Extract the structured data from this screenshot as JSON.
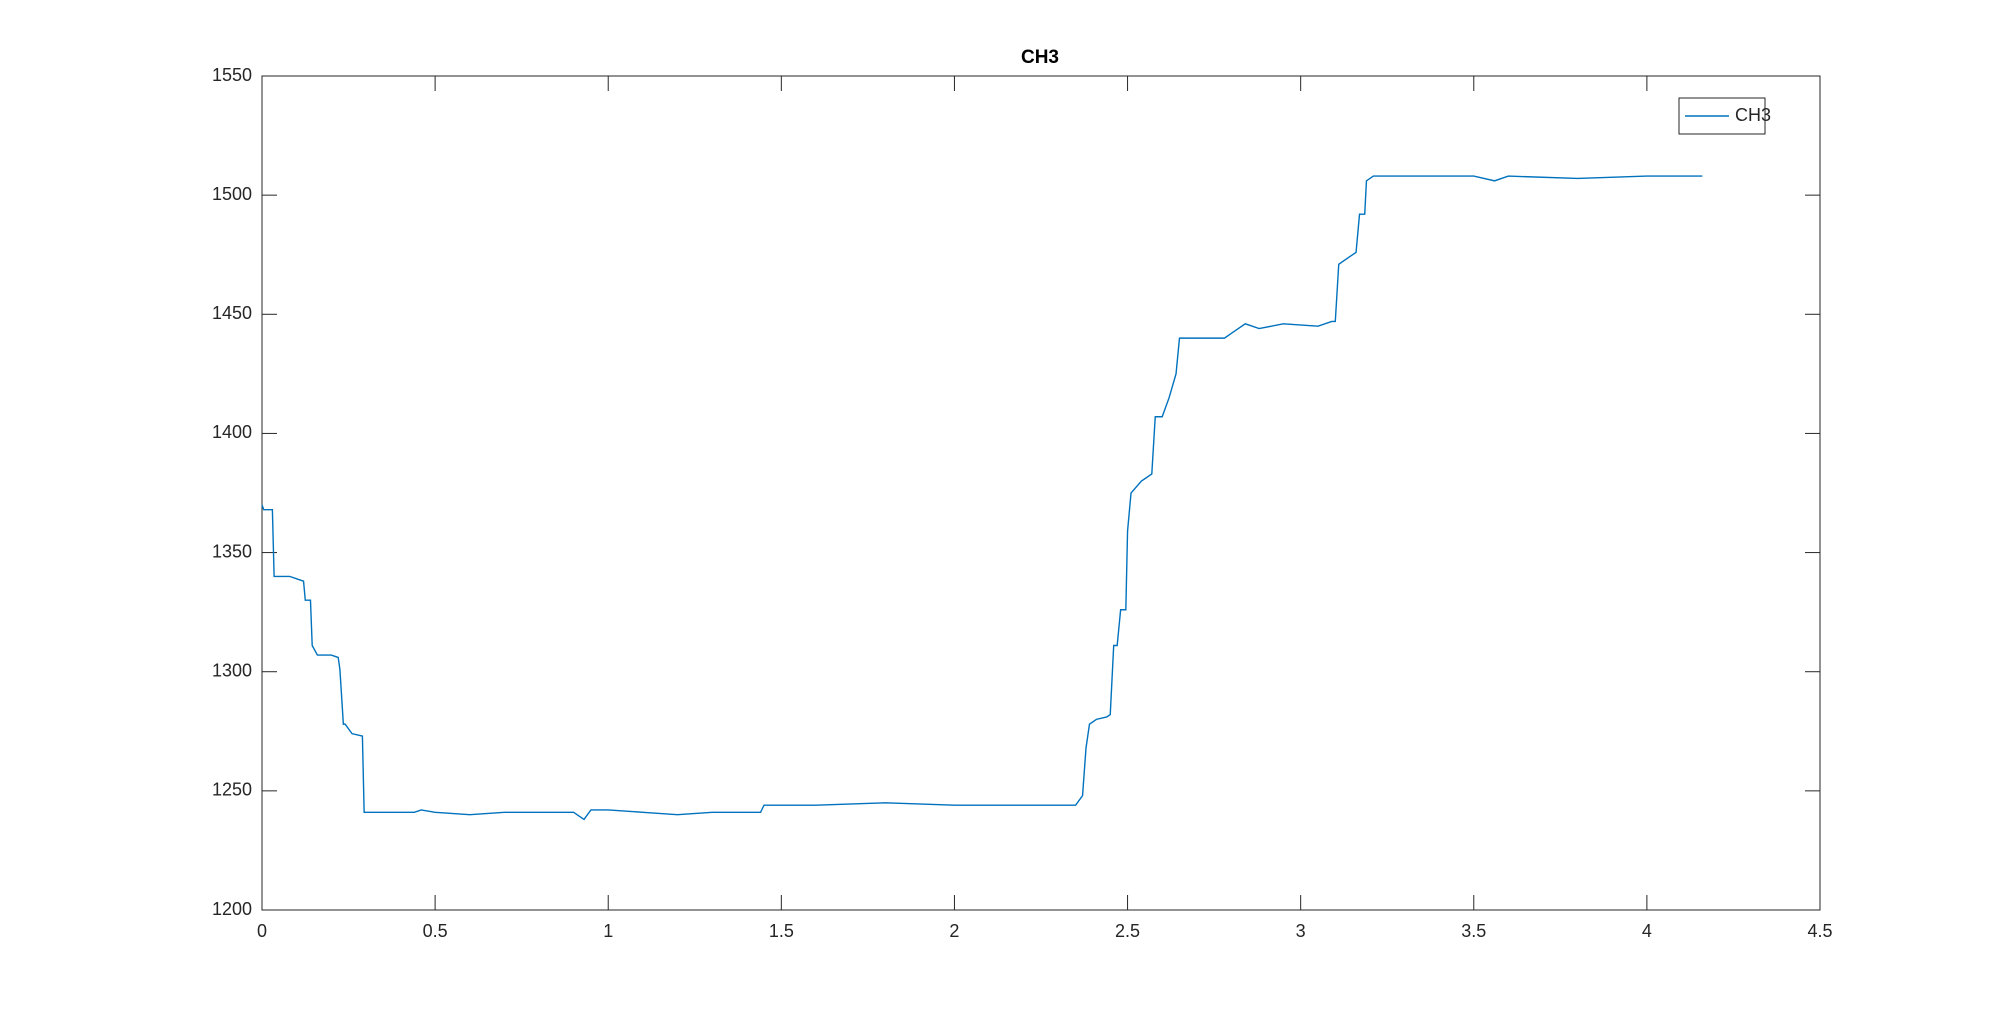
{
  "chart_data": {
    "type": "line",
    "title": "CH3",
    "x": [
      0,
      0.005,
      0.03,
      0.035,
      0.08,
      0.1,
      0.12,
      0.125,
      0.14,
      0.145,
      0.16,
      0.2,
      0.22,
      0.225,
      0.235,
      0.24,
      0.26,
      0.29,
      0.295,
      0.44,
      0.46,
      0.5,
      0.6,
      0.7,
      0.9,
      0.93,
      0.95,
      1.0,
      1.1,
      1.2,
      1.3,
      1.44,
      1.45,
      1.6,
      1.8,
      2.0,
      2.2,
      2.35,
      2.37,
      2.38,
      2.39,
      2.41,
      2.44,
      2.45,
      2.46,
      2.47,
      2.48,
      2.495,
      2.5,
      2.51,
      2.54,
      2.57,
      2.58,
      2.6,
      2.62,
      2.64,
      2.65,
      2.66,
      2.78,
      2.8,
      2.84,
      2.88,
      2.95,
      3.05,
      3.09,
      3.1,
      3.11,
      3.14,
      3.16,
      3.17,
      3.185,
      3.19,
      3.21,
      3.5,
      3.56,
      3.6,
      3.8,
      4.0,
      4.16
    ],
    "series": [
      {
        "name": "CH3",
        "color": "#0072bd",
        "values": [
          1370,
          1368,
          1368,
          1340,
          1340,
          1339,
          1338,
          1330,
          1330,
          1311,
          1307,
          1307,
          1306,
          1301,
          1278,
          1278,
          1274,
          1273,
          1241,
          1241,
          1242,
          1241,
          1240,
          1241,
          1241,
          1238,
          1242,
          1242,
          1241,
          1240,
          1241,
          1241,
          1244,
          1244,
          1245,
          1244,
          1244,
          1244,
          1248,
          1268,
          1278,
          1280,
          1281,
          1282,
          1311,
          1311,
          1326,
          1326,
          1359,
          1375,
          1380,
          1383,
          1407,
          1407,
          1415,
          1425,
          1440,
          1440,
          1440,
          1442,
          1446,
          1444,
          1446,
          1445,
          1447,
          1447,
          1471,
          1474,
          1476,
          1492,
          1492,
          1506,
          1508,
          1508,
          1506,
          1508,
          1507,
          1508,
          1508
        ]
      }
    ],
    "xlim": [
      0,
      4.5
    ],
    "xticks": [
      0,
      0.5,
      1,
      1.5,
      2,
      2.5,
      3,
      3.5,
      4,
      4.5
    ],
    "ylim": [
      1200,
      1550
    ],
    "yticks": [
      1200,
      1250,
      1300,
      1350,
      1400,
      1450,
      1500,
      1550
    ],
    "legend": "northeast",
    "grid": false
  }
}
